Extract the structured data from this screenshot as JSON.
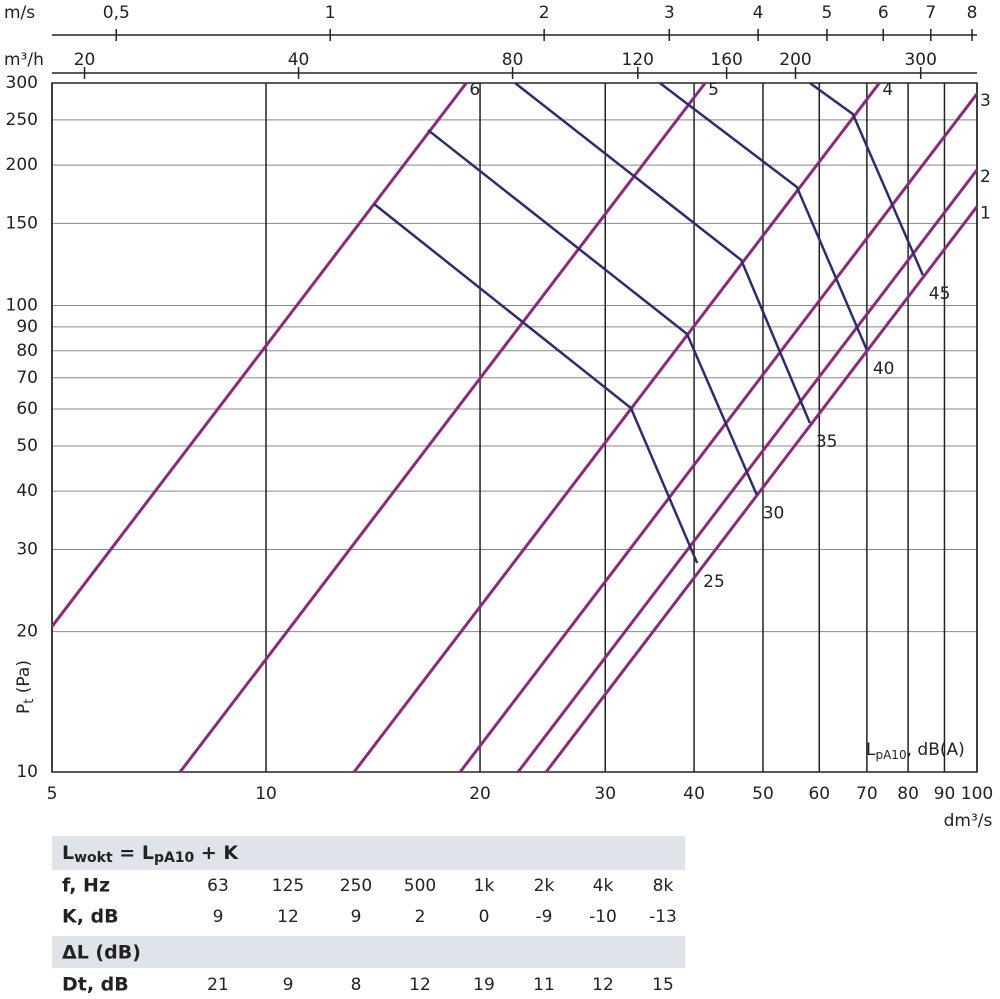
{
  "chart_data": {
    "type": "line",
    "log_x": true,
    "log_y": true,
    "grid": true,
    "x_label": "dm³/s",
    "y_label": [
      "P",
      "t",
      " (Pa)"
    ],
    "xlim": [
      5,
      100
    ],
    "ylim": [
      10,
      300
    ],
    "xticks": [
      5,
      10,
      20,
      30,
      40,
      50,
      60,
      70,
      80,
      90,
      100
    ],
    "yticks": [
      10,
      20,
      30,
      40,
      50,
      60,
      70,
      80,
      90,
      100,
      150,
      200,
      250,
      300
    ],
    "top_axes": [
      {
        "label": "m/s",
        "xlim": [
          0.406,
          8.13
        ],
        "xticks": [
          {
            "value": 0.5,
            "label": "0,5"
          },
          1,
          2,
          3,
          4,
          5,
          6,
          7,
          8
        ]
      },
      {
        "label": "m³/h",
        "xlim": [
          18,
          360
        ],
        "xticks": [
          20,
          40,
          80,
          120,
          160,
          200,
          300
        ]
      }
    ],
    "series": [
      {
        "name": "1",
        "color": "#8b2a78",
        "x": [
          24.77,
          100
        ],
        "values": [
          10,
          163
        ]
      },
      {
        "name": "2",
        "color": "#8b2a78",
        "x": [
          22.62,
          100
        ],
        "values": [
          10,
          195.4
        ]
      },
      {
        "name": "3",
        "color": "#8b2a78",
        "x": [
          18.75,
          100
        ],
        "values": [
          10,
          284.4
        ]
      },
      {
        "name": "4",
        "color": "#8b2a78",
        "x": [
          13.3,
          72.9
        ],
        "values": [
          10,
          300
        ]
      },
      {
        "name": "5",
        "color": "#8b2a78",
        "x": [
          7.57,
          41.46
        ],
        "values": [
          10,
          300
        ]
      },
      {
        "name": "6",
        "color": "#8b2a78",
        "x": [
          5,
          19.13
        ],
        "values": [
          20.5,
          300
        ]
      }
    ],
    "sound_series": [
      {
        "name": "25",
        "color": "#2e2c6e",
        "x": [
          14.19,
          32.6,
          40.4
        ],
        "values": [
          165.1,
          60.3,
          28.05
        ]
      },
      {
        "name": "30",
        "color": "#2e2c6e",
        "x": [
          16.9,
          39.1,
          49.0
        ],
        "values": [
          237.8,
          86.9,
          39.3
        ]
      },
      {
        "name": "35",
        "color": "#2e2c6e",
        "x": [
          22.4,
          46.6,
          58.2
        ],
        "values": [
          300,
          125.2,
          56.0
        ]
      },
      {
        "name": "40",
        "color": "#2e2c6e",
        "x": [
          35.8,
          55.8,
          70.0
        ],
        "values": [
          300,
          179.5,
          80.3
        ]
      },
      {
        "name": "45",
        "color": "#2e2c6e",
        "x": [
          58.2,
          66.9,
          83.9
        ],
        "values": [
          300,
          257.3,
          116.3
        ]
      }
    ],
    "annotation": [
      "L",
      "pA10",
      ", dB(A)"
    ]
  },
  "table": {
    "title1": [
      "L",
      "wokt",
      " = L",
      "pA10",
      " + K"
    ],
    "rows1": [
      [
        "f, Hz",
        "63",
        "125",
        "250",
        "500",
        "1k",
        "2k",
        "4k",
        "8k"
      ],
      [
        "K, dB",
        "9",
        "12",
        "9",
        "2",
        "0",
        "-9",
        "-10",
        "-13"
      ]
    ],
    "title2": "ΔL (dB)",
    "rows2": [
      [
        "Dt, dB",
        "21",
        "9",
        "8",
        "12",
        "19",
        "11",
        "12",
        "15"
      ]
    ]
  }
}
